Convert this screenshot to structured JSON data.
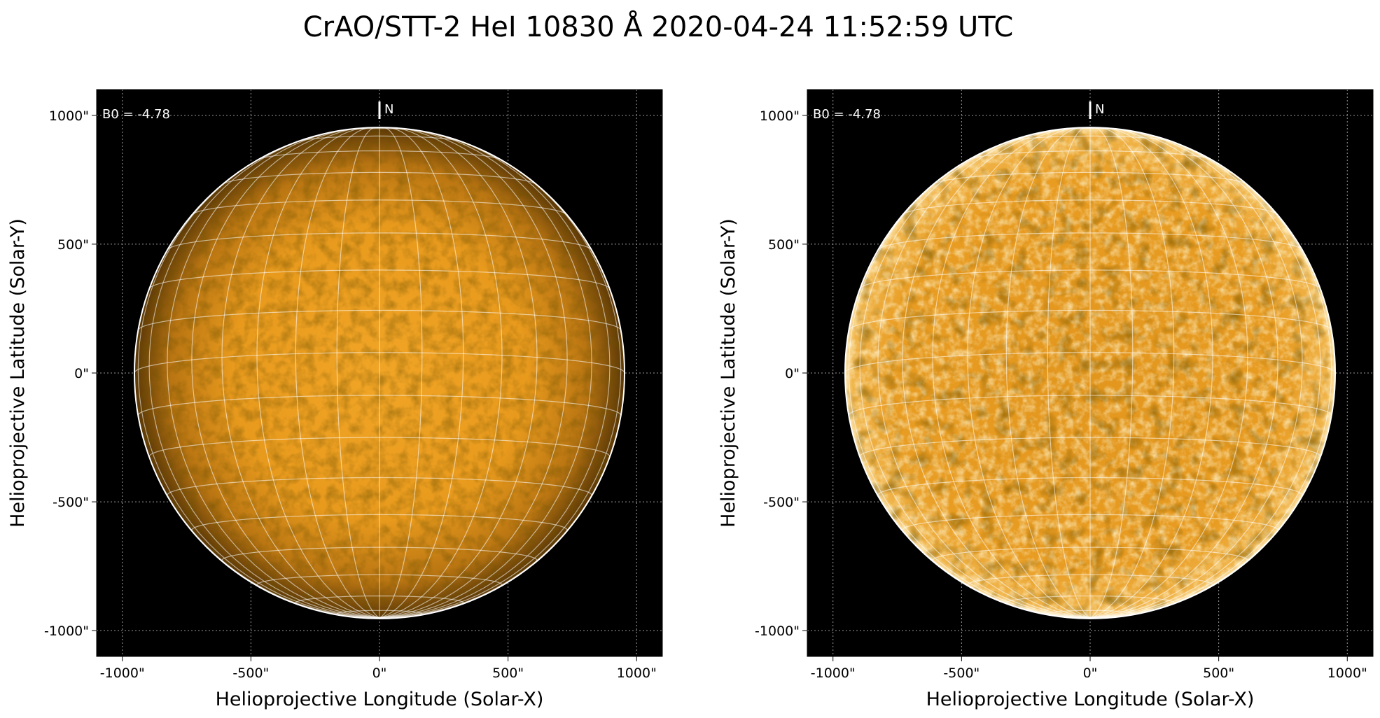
{
  "figure": {
    "title": "CrAO/STT-2 HeI 10830 Å 2020-04-24 11:52:59 UTC",
    "disk_color": "#e89c1c",
    "background_color": "#000000"
  },
  "panels": [
    {
      "name": "left",
      "b0_label": "B0 = -4.78",
      "north_label": "N",
      "xlabel": "Helioprojective Longitude (Solar-X)",
      "ylabel": "Helioprojective Latitude (Solar-Y)",
      "x_ticks": [
        "-1000\"",
        "-500\"",
        "0\"",
        "500\"",
        "1000\""
      ],
      "y_ticks": [
        "1000\"",
        "500\"",
        "0\"",
        "-500\"",
        "-1000\""
      ],
      "tick_values": [
        -1000,
        -500,
        0,
        500,
        1000
      ],
      "axis_range": [
        -1100,
        1100
      ],
      "solar_radius_arcsec": 953,
      "b0_deg": -4.78,
      "enhanced": false
    },
    {
      "name": "right",
      "b0_label": "B0 = -4.78",
      "north_label": "N",
      "xlabel": "Helioprojective Longitude (Solar-X)",
      "ylabel": "Helioprojective Latitude (Solar-Y)",
      "x_ticks": [
        "-1000\"",
        "-500\"",
        "0\"",
        "500\"",
        "1000\""
      ],
      "y_ticks": [
        "1000\"",
        "500\"",
        "0\"",
        "-500\"",
        "-1000\""
      ],
      "tick_values": [
        -1000,
        -500,
        0,
        500,
        1000
      ],
      "axis_range": [
        -1100,
        1100
      ],
      "solar_radius_arcsec": 953,
      "b0_deg": -4.78,
      "enhanced": true
    }
  ]
}
